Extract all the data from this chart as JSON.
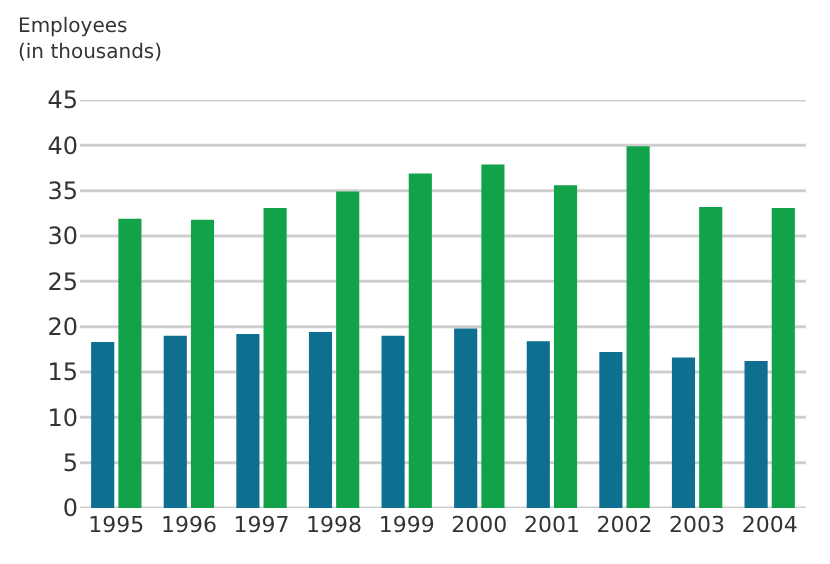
{
  "chart_data": {
    "type": "bar",
    "ylabel": "Employees\n(in thousands)",
    "categories": [
      "1995",
      "1996",
      "1997",
      "1998",
      "1999",
      "2000",
      "2001",
      "2002",
      "2003",
      "2004"
    ],
    "series": [
      {
        "color": "#0e6f91",
        "values": [
          18.3,
          19,
          19.2,
          19.4,
          19,
          19.8,
          18.4,
          17.2,
          16.6,
          16.2
        ]
      },
      {
        "color": "#12a34a",
        "values": [
          31.9,
          31.8,
          33.1,
          34.9,
          36.9,
          37.9,
          35.6,
          39.9,
          33.2,
          33.1
        ]
      }
    ],
    "ylim": [
      0,
      45
    ],
    "yticks": [
      0,
      5,
      10,
      15,
      20,
      25,
      30,
      35,
      40,
      45
    ],
    "grid": "y"
  }
}
